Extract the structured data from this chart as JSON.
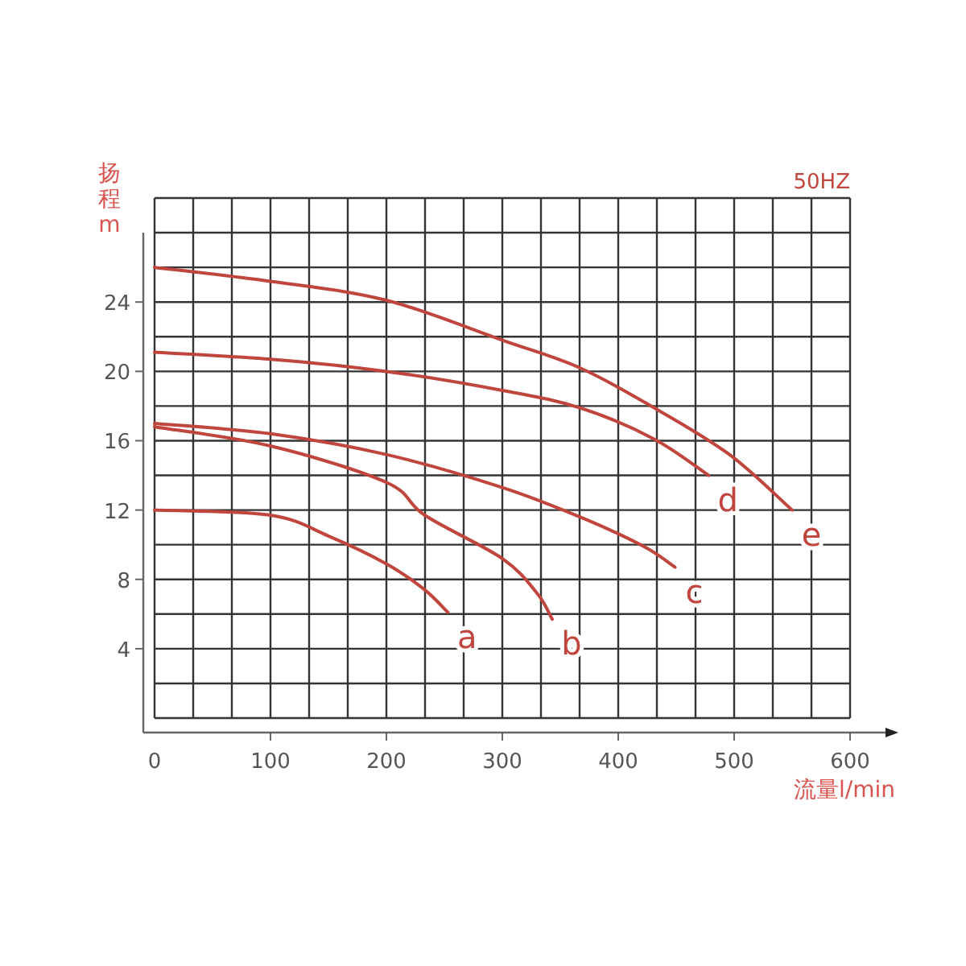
{
  "chart_data": {
    "type": "line",
    "xlabel": "流量l/min",
    "ylabel": "扬程m",
    "xlim": [
      0,
      600
    ],
    "ylim": [
      0,
      30
    ],
    "xticks": [
      0,
      100,
      200,
      300,
      400,
      500,
      600
    ],
    "yticks": [
      4,
      8,
      12,
      16,
      20,
      24
    ],
    "grid": true,
    "marker": "none",
    "line_style": "solid",
    "series": [
      {
        "color": "#c0453c",
        "x": [
          0,
          100,
          150,
          200,
          233,
          253
        ],
        "values": [
          12.0,
          11.7,
          10.5,
          8.9,
          7.4,
          6.1
        ]
      },
      {
        "color": "#c0453c",
        "x": [
          0,
          100,
          200,
          233,
          300,
          330,
          343
        ],
        "values": [
          16.8,
          15.7,
          13.6,
          11.7,
          9.2,
          7.2,
          5.7
        ]
      },
      {
        "color": "#c0453c",
        "x": [
          0,
          100,
          200,
          300,
          367,
          422,
          449
        ],
        "values": [
          17.0,
          16.4,
          15.2,
          13.3,
          11.6,
          9.9,
          8.7
        ]
      },
      {
        "color": "#c0453c",
        "x": [
          0,
          100,
          200,
          300,
          367,
          431,
          478
        ],
        "values": [
          21.1,
          20.7,
          20.0,
          18.9,
          17.9,
          16.1,
          14.0
        ]
      },
      {
        "color": "#c0453c",
        "x": [
          0,
          100,
          200,
          300,
          367,
          431,
          496,
          550
        ],
        "values": [
          26.0,
          25.2,
          24.1,
          21.8,
          20.2,
          17.9,
          15.2,
          12.0
        ]
      }
    ],
    "annotations": [
      {
        "text": "a",
        "x": 253,
        "y": 6.1
      },
      {
        "text": "b",
        "x": 343,
        "y": 5.7
      },
      {
        "text": "c",
        "x": 449,
        "y": 8.7
      },
      {
        "text": "d",
        "x": 478,
        "y": 14.0
      },
      {
        "text": "e",
        "x": 550,
        "y": 12.0
      },
      "50HZ"
    ]
  }
}
